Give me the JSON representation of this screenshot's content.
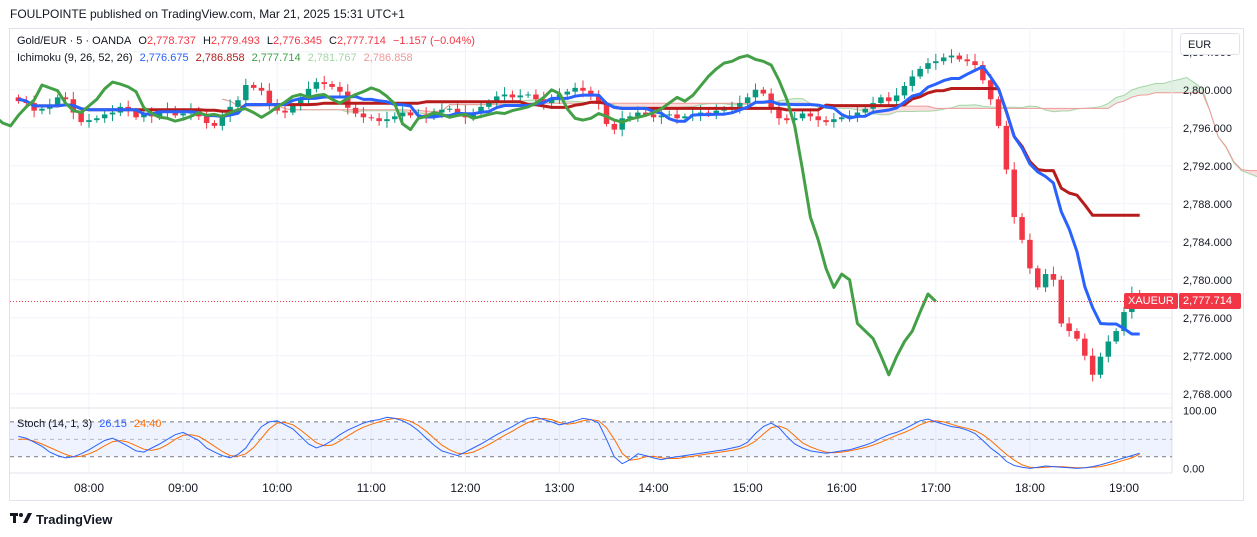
{
  "header": {
    "title": "FOULPOINTE published on TradingView.com, Mar 21, 2025 15:31 UTC+1"
  },
  "legend": {
    "symbol": "Gold/EUR · 5 · OANDA",
    "o_label": "O",
    "o": "2,778.737",
    "h_label": "H",
    "h": "2,779.493",
    "l_label": "L",
    "l": "2,776.345",
    "c_label": "C",
    "c": "2,777.714",
    "change": "−1.157 (−0.04%)",
    "ichimoku_label": "Ichimoku (9, 26, 52, 26)",
    "ichimoku_values": [
      "2,776.675",
      "2,786.858",
      "2,777.714",
      "2,781.767",
      "2,786.858"
    ],
    "stoch_label": "Stoch (14, 1, 3)",
    "stoch_k": "26.15",
    "stoch_d": "24.40"
  },
  "currency": "EUR",
  "price_tag": {
    "symbol": "XAUEUR",
    "value": "2,777.714"
  },
  "footer": {
    "brand": "TradingView",
    "logo": "tradingview-logo-icon"
  },
  "colors": {
    "up": "#089981",
    "down": "#f23645",
    "conversion": "#2962ff",
    "base": "#b71c1c",
    "lagging": "#43a047",
    "cloud_red": "#f8c7c7",
    "cloud_green": "#cde8cf",
    "stoch_k": "#2962ff",
    "stoch_d": "#ff6d00"
  },
  "chart_data": {
    "type": "candlestick",
    "price_ylim": [
      2766.5,
      2806.5
    ],
    "price_ticks": [
      2768,
      2772,
      2776,
      2780,
      2784,
      2788,
      2792,
      2796,
      2800,
      2804
    ],
    "price_tick_labels": [
      "2,768.000",
      "2,772.000",
      "2,776.000",
      "2,780.000",
      "2,784.000",
      "2,788.000",
      "2,792.000",
      "2,796.000",
      "2,800.000",
      "2,804.000"
    ],
    "time_ticks": [
      "08:00",
      "09:00",
      "10:00",
      "11:00",
      "12:00",
      "13:00",
      "14:00",
      "15:00",
      "16:00",
      "17:00",
      "18:00",
      "19:00"
    ],
    "time_tick_hours": [
      8,
      9,
      10,
      11,
      12,
      13,
      14,
      15,
      16,
      17,
      18,
      19
    ],
    "closes": [
      2798.8,
      2798.6,
      2797.8,
      2798.0,
      2798.4,
      2799.2,
      2799.0,
      2797.6,
      2796.6,
      2796.8,
      2797.0,
      2797.4,
      2797.6,
      2798.2,
      2797.8,
      2797.1,
      2797.4,
      2797.2,
      2797.6,
      2798.0,
      2797.3,
      2797.5,
      2797.8,
      2797.2,
      2796.5,
      2796.2,
      2797.3,
      2798.2,
      2798.9,
      2800.5,
      2800.2,
      2799.9,
      2798.6,
      2797.8,
      2797.6,
      2798.3,
      2799.0,
      2800.1,
      2800.8,
      2800.6,
      2800.3,
      2799.8,
      2798.1,
      2797.5,
      2797.1,
      2797.0,
      2796.7,
      2796.9,
      2797.2,
      2797.6,
      2797.3,
      2797.4,
      2797.2,
      2797.6,
      2797.9,
      2798.0,
      2797.6,
      2797.1,
      2797.6,
      2798.2,
      2798.7,
      2799.3,
      2799.5,
      2799.2,
      2799.4,
      2799.5,
      2799.0,
      2798.6,
      2799.1,
      2799.5,
      2799.8,
      2800.2,
      2799.9,
      2799.3,
      2798.5,
      2796.4,
      2795.8,
      2797.0,
      2797.2,
      2797.6,
      2797.4,
      2797.1,
      2797.3,
      2797.4,
      2797.0,
      2797.2,
      2797.4,
      2797.6,
      2797.5,
      2797.8,
      2798.0,
      2798.2,
      2798.6,
      2799.2,
      2800.0,
      2799.6,
      2798.0,
      2797.0,
      2796.8,
      2797.0,
      2797.5,
      2797.2,
      2796.8,
      2796.6,
      2796.9,
      2797.1,
      2797.3,
      2797.6,
      2798.0,
      2798.6,
      2799.2,
      2798.8,
      2799.4,
      2800.4,
      2801.4,
      2802.2,
      2802.8,
      2803.0,
      2803.4,
      2803.6,
      2803.2,
      2803.0,
      2802.6,
      2801.0,
      2799.0,
      2796.2,
      2791.6,
      2786.6,
      2784.2,
      2781.2,
      2779.2,
      2780.6,
      2780.0,
      2775.4,
      2774.6,
      2773.8,
      2772.0,
      2770.0,
      2771.9,
      2773.5,
      2774.6,
      2776.6,
      2778.5,
      2777.714
    ],
    "ichimoku": {
      "tenkan": "2,776.675",
      "kijun": "2,786.858",
      "chikou": "2,777.714",
      "span_a": "2,781.767",
      "span_b": "2,786.858"
    },
    "stoch_ylim": [
      -8,
      104
    ],
    "stoch_ticks": [
      100,
      0
    ],
    "stoch_tick_labels": [
      "100.00",
      "0.00"
    ],
    "stoch_band": [
      80,
      20
    ],
    "stoch_k": [
      55,
      52,
      45,
      38,
      28,
      22,
      18,
      20,
      25,
      32,
      40,
      48,
      52,
      45,
      38,
      30,
      28,
      35,
      42,
      50,
      58,
      62,
      55,
      48,
      35,
      28,
      22,
      18,
      24,
      35,
      55,
      72,
      80,
      82,
      75,
      68,
      55,
      42,
      35,
      40,
      48,
      58,
      66,
      72,
      78,
      82,
      84,
      88,
      86,
      82,
      75,
      65,
      52,
      40,
      30,
      26,
      22,
      28,
      35,
      42,
      50,
      58,
      65,
      72,
      80,
      86,
      88,
      84,
      80,
      75,
      78,
      82,
      86,
      84,
      78,
      50,
      20,
      8,
      15,
      25,
      22,
      18,
      15,
      18,
      20,
      22,
      24,
      26,
      28,
      30,
      32,
      35,
      38,
      45,
      60,
      72,
      78,
      70,
      55,
      42,
      35,
      30,
      28,
      26,
      28,
      30,
      32,
      36,
      40,
      45,
      52,
      58,
      62,
      68,
      75,
      82,
      85,
      80,
      76,
      72,
      70,
      66,
      60,
      48,
      35,
      25,
      12,
      5,
      2,
      0,
      2,
      4,
      3,
      2,
      1,
      0,
      1,
      3,
      6,
      10,
      14,
      18,
      22,
      26.15
    ],
    "stoch_d": [
      50,
      50,
      47,
      42,
      36,
      30,
      24,
      20,
      21,
      25,
      31,
      39,
      46,
      48,
      45,
      39,
      33,
      31,
      34,
      41,
      50,
      57,
      58,
      55,
      47,
      38,
      29,
      22,
      21,
      25,
      36,
      52,
      68,
      78,
      79,
      75,
      66,
      55,
      44,
      39,
      40,
      47,
      56,
      64,
      71,
      76,
      80,
      84,
      86,
      85,
      81,
      74,
      64,
      52,
      40,
      32,
      26,
      25,
      28,
      34,
      41,
      49,
      57,
      64,
      72,
      79,
      84,
      86,
      84,
      79,
      76,
      78,
      82,
      84,
      82,
      70,
      50,
      26,
      14,
      16,
      20,
      21,
      18,
      17,
      17,
      19,
      21,
      23,
      25,
      27,
      29,
      31,
      34,
      39,
      47,
      59,
      70,
      73,
      68,
      56,
      44,
      37,
      32,
      28,
      27,
      28,
      30,
      33,
      36,
      40,
      45,
      51,
      57,
      62,
      68,
      75,
      80,
      82,
      80,
      76,
      72,
      69,
      65,
      58,
      48,
      36,
      24,
      14,
      6,
      2,
      1,
      2,
      3,
      3,
      2,
      1,
      1,
      2,
      3,
      6,
      10,
      14,
      18,
      24.4
    ]
  }
}
